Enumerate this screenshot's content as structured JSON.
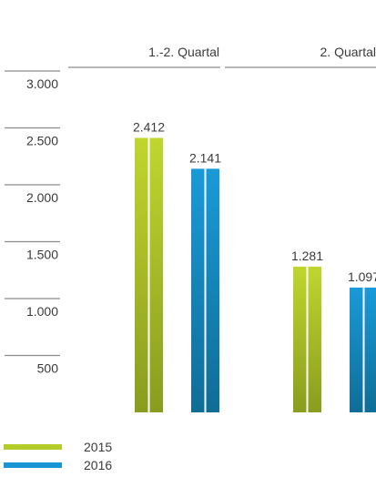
{
  "chart_data": {
    "type": "bar",
    "categories": [
      "1.-2. Quartal",
      "2. Quartal"
    ],
    "series": [
      {
        "name": "2015",
        "values": [
          2412,
          1281
        ],
        "labels": [
          "2.412",
          "1.281"
        ],
        "color": "#b4cc2a"
      },
      {
        "name": "2016",
        "values": [
          2141,
          1097
        ],
        "labels": [
          "2.141",
          "1.097"
        ],
        "color": "#1a95d3"
      }
    ],
    "yticks": [
      {
        "value": 500,
        "label": "500"
      },
      {
        "value": 1000,
        "label": "1.000"
      },
      {
        "value": 1500,
        "label": "1.500"
      },
      {
        "value": 2000,
        "label": "2.000"
      },
      {
        "value": 2500,
        "label": "2.500"
      },
      {
        "value": 3000,
        "label": "3.000"
      }
    ],
    "ylim": [
      0,
      3000
    ],
    "title": "",
    "xlabel": "",
    "ylabel": "",
    "grid": false,
    "legend_position": "bottom-left"
  }
}
